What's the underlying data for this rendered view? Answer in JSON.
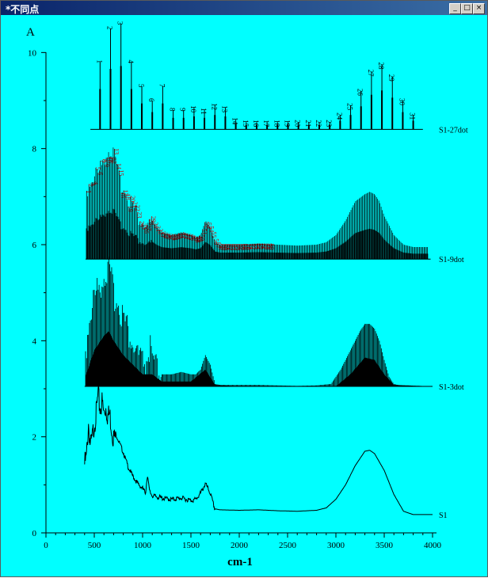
{
  "window": {
    "title": "*不同点",
    "controls": [
      "minimize",
      "maximize",
      "close"
    ]
  },
  "chart_data": {
    "type": "line",
    "panel_label": "A",
    "xlabel": "cm-1",
    "xlim": [
      0,
      4000
    ],
    "ylim": [
      0,
      10.5
    ],
    "x_ticks": [
      "0",
      "500",
      "1000",
      "1500",
      "2000",
      "2500",
      "3000",
      "3500",
      "4000"
    ],
    "y_ticks": [
      "0",
      "2",
      "4",
      "6",
      "8",
      "10"
    ],
    "series": [
      {
        "name": "S1",
        "kind": "spectrum",
        "points": [
          [
            400,
            1.55
          ],
          [
            420,
            1.7
          ],
          [
            440,
            2.4
          ],
          [
            460,
            1.9
          ],
          [
            480,
            2.1
          ],
          [
            500,
            2.4
          ],
          [
            520,
            2.6
          ],
          [
            540,
            3.0
          ],
          [
            560,
            2.7
          ],
          [
            580,
            2.85
          ],
          [
            600,
            2.6
          ],
          [
            620,
            2.75
          ],
          [
            640,
            2.55
          ],
          [
            660,
            2.6
          ],
          [
            680,
            2.3
          ],
          [
            700,
            2.1
          ],
          [
            720,
            2.1
          ],
          [
            760,
            1.9
          ],
          [
            800,
            1.7
          ],
          [
            850,
            1.4
          ],
          [
            900,
            1.2
          ],
          [
            950,
            1.05
          ],
          [
            1000,
            0.95
          ],
          [
            1030,
            0.85
          ],
          [
            1050,
            1.25
          ],
          [
            1070,
            0.9
          ],
          [
            1100,
            0.8
          ],
          [
            1200,
            0.75
          ],
          [
            1300,
            0.72
          ],
          [
            1400,
            0.75
          ],
          [
            1500,
            0.7
          ],
          [
            1550,
            0.72
          ],
          [
            1600,
            0.85
          ],
          [
            1650,
            1.05
          ],
          [
            1700,
            0.85
          ],
          [
            1750,
            0.5
          ],
          [
            1800,
            0.48
          ],
          [
            2000,
            0.47
          ],
          [
            2200,
            0.48
          ],
          [
            2400,
            0.46
          ],
          [
            2600,
            0.45
          ],
          [
            2800,
            0.47
          ],
          [
            2900,
            0.52
          ],
          [
            3000,
            0.7
          ],
          [
            3100,
            1.0
          ],
          [
            3200,
            1.4
          ],
          [
            3300,
            1.7
          ],
          [
            3350,
            1.72
          ],
          [
            3400,
            1.65
          ],
          [
            3500,
            1.3
          ],
          [
            3600,
            0.8
          ],
          [
            3700,
            0.45
          ],
          [
            3800,
            0.38
          ],
          [
            3900,
            0.38
          ],
          [
            4000,
            0.38
          ]
        ]
      },
      {
        "name": "S1-3dot",
        "kind": "stems",
        "baseline": 3.05,
        "x_start": 410,
        "x_end": 4000,
        "step": 10,
        "points": [
          [
            400,
            3.6
          ],
          [
            450,
            4.5
          ],
          [
            500,
            4.9
          ],
          [
            550,
            5.1
          ],
          [
            600,
            5.4
          ],
          [
            650,
            5.45
          ],
          [
            700,
            5.0
          ],
          [
            750,
            4.8
          ],
          [
            800,
            4.5
          ],
          [
            850,
            4.2
          ],
          [
            900,
            3.9
          ],
          [
            950,
            3.7
          ],
          [
            1000,
            3.5
          ],
          [
            1050,
            3.6
          ],
          [
            1080,
            3.85
          ],
          [
            1100,
            3.5
          ],
          [
            1150,
            3.35
          ],
          [
            1200,
            3.3
          ],
          [
            1300,
            3.3
          ],
          [
            1400,
            3.35
          ],
          [
            1500,
            3.3
          ],
          [
            1550,
            3.3
          ],
          [
            1600,
            3.4
          ],
          [
            1650,
            3.7
          ],
          [
            1700,
            3.5
          ],
          [
            1750,
            3.1
          ],
          [
            1800,
            3.08
          ],
          [
            2000,
            3.08
          ],
          [
            2200,
            3.08
          ],
          [
            2400,
            3.07
          ],
          [
            2600,
            3.06
          ],
          [
            2800,
            3.07
          ],
          [
            2950,
            3.1
          ],
          [
            3050,
            3.4
          ],
          [
            3150,
            3.8
          ],
          [
            3250,
            4.2
          ],
          [
            3300,
            4.35
          ],
          [
            3350,
            4.35
          ],
          [
            3400,
            4.25
          ],
          [
            3450,
            4.0
          ],
          [
            3500,
            3.6
          ],
          [
            3550,
            3.25
          ],
          [
            3600,
            3.1
          ],
          [
            3700,
            3.05
          ],
          [
            4000,
            3.05
          ]
        ],
        "inner": [
          [
            400,
            3.2
          ],
          [
            500,
            3.8
          ],
          [
            600,
            4.1
          ],
          [
            650,
            4.2
          ],
          [
            700,
            4.0
          ],
          [
            800,
            3.7
          ],
          [
            900,
            3.5
          ],
          [
            1000,
            3.3
          ],
          [
            1100,
            3.3
          ],
          [
            1200,
            3.15
          ],
          [
            1500,
            3.15
          ],
          [
            1650,
            3.4
          ],
          [
            1750,
            3.08
          ],
          [
            2000,
            3.05
          ],
          [
            3000,
            3.05
          ],
          [
            3150,
            3.3
          ],
          [
            3300,
            3.65
          ],
          [
            3400,
            3.6
          ],
          [
            3500,
            3.3
          ],
          [
            3600,
            3.08
          ],
          [
            4000,
            3.05
          ]
        ]
      },
      {
        "name": "S1-9dot",
        "kind": "stems_dotted",
        "baseline": 5.7,
        "x_start": 420,
        "x_end": 3950,
        "step": 12,
        "points": [
          [
            400,
            7.0
          ],
          [
            450,
            7.3
          ],
          [
            500,
            7.45
          ],
          [
            550,
            7.5
          ],
          [
            600,
            7.8
          ],
          [
            650,
            8.0
          ],
          [
            700,
            7.9
          ],
          [
            750,
            7.4
          ],
          [
            800,
            7.2
          ],
          [
            850,
            7.0
          ],
          [
            900,
            6.8
          ],
          [
            950,
            6.6
          ],
          [
            1000,
            6.45
          ],
          [
            1050,
            6.35
          ],
          [
            1100,
            6.5
          ],
          [
            1150,
            6.35
          ],
          [
            1200,
            6.25
          ],
          [
            1300,
            6.2
          ],
          [
            1400,
            6.25
          ],
          [
            1500,
            6.2
          ],
          [
            1550,
            6.15
          ],
          [
            1600,
            6.2
          ],
          [
            1650,
            6.5
          ],
          [
            1700,
            6.35
          ],
          [
            1750,
            6.05
          ],
          [
            1800,
            6.0
          ],
          [
            2000,
            6.0
          ],
          [
            2200,
            6.02
          ],
          [
            2400,
            6.0
          ],
          [
            2600,
            5.98
          ],
          [
            2800,
            6.0
          ],
          [
            2900,
            6.05
          ],
          [
            3000,
            6.2
          ],
          [
            3100,
            6.5
          ],
          [
            3200,
            6.9
          ],
          [
            3300,
            7.05
          ],
          [
            3350,
            7.1
          ],
          [
            3400,
            7.05
          ],
          [
            3450,
            6.9
          ],
          [
            3500,
            6.6
          ],
          [
            3600,
            6.2
          ],
          [
            3700,
            6.0
          ],
          [
            3800,
            5.95
          ],
          [
            3950,
            5.95
          ]
        ],
        "label_count": 80
      },
      {
        "name": "S1-27dot",
        "kind": "stems",
        "baseline": 8.4,
        "x_start": 560,
        "x_end": 3810,
        "step": 108,
        "labels": [
          "1",
          "2",
          "3",
          "4",
          "5",
          "6",
          "7",
          "8",
          "9",
          "10",
          "11",
          "12",
          "13",
          "14",
          "15",
          "16",
          "17",
          "18",
          "19",
          "20",
          "21",
          "22",
          "23",
          "24",
          "25",
          "26",
          "27",
          "28",
          "29",
          "30",
          "31"
        ],
        "heights": [
          9.8,
          10.5,
          10.6,
          9.8,
          9.3,
          9.0,
          9.3,
          8.8,
          8.8,
          8.85,
          8.8,
          8.9,
          8.85,
          8.6,
          8.55,
          8.55,
          8.55,
          8.55,
          8.55,
          8.55,
          8.55,
          8.55,
          8.55,
          8.7,
          8.9,
          9.2,
          9.6,
          9.75,
          9.5,
          9.0,
          8.7
        ]
      }
    ]
  }
}
